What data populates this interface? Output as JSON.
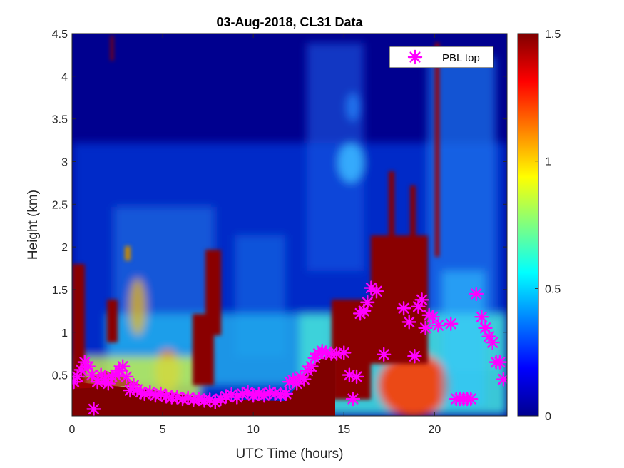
{
  "chart_data": {
    "type": "heatmap",
    "title": "03-Aug-2018, CL31 Data",
    "xlabel": "UTC Time (hours)",
    "ylabel": "Height (km)",
    "xlim": [
      0,
      24
    ],
    "ylim": [
      0.02,
      4.5
    ],
    "xticks": [
      "0",
      "5",
      "10",
      "15",
      "20"
    ],
    "yticks": [
      "0.5",
      "1",
      "1.5",
      "2",
      "2.5",
      "3",
      "3.5",
      "4",
      "4.5"
    ],
    "colorbar": {
      "colormap": "jet",
      "range": [
        0,
        1.5
      ],
      "ticks": [
        "0",
        "0.5",
        "1",
        "1.5"
      ]
    },
    "legend": {
      "position": "top-right",
      "entries": [
        "PBL top"
      ]
    },
    "series": [
      {
        "name": "PBL top",
        "marker": "asterisk",
        "color": "#ff00ff",
        "x": [
          0.1,
          0.3,
          0.5,
          0.7,
          0.9,
          1.1,
          1.2,
          1.4,
          1.6,
          1.8,
          2.0,
          2.2,
          2.4,
          2.6,
          2.8,
          3.0,
          3.2,
          3.4,
          3.6,
          3.8,
          4.0,
          4.3,
          4.6,
          4.9,
          5.2,
          5.5,
          5.8,
          6.1,
          6.4,
          6.7,
          7.0,
          7.3,
          7.6,
          7.9,
          8.2,
          8.5,
          8.8,
          9.1,
          9.4,
          9.7,
          10.0,
          10.3,
          10.6,
          10.9,
          11.2,
          11.5,
          11.8,
          12.0,
          12.2,
          12.4,
          12.6,
          12.8,
          13.0,
          13.2,
          13.4,
          13.6,
          13.8,
          14.0,
          14.3,
          14.6,
          15.0,
          15.3,
          15.5,
          15.7,
          15.9,
          16.1,
          16.3,
          16.5,
          16.8,
          17.2,
          18.3,
          18.6,
          18.9,
          19.1,
          19.3,
          19.5,
          19.7,
          19.9,
          20.2,
          20.9,
          21.2,
          21.4,
          21.6,
          21.8,
          22.0,
          22.3,
          22.6,
          22.8,
          23.0,
          23.2,
          23.4,
          23.6,
          23.8
        ],
        "y": [
          0.42,
          0.48,
          0.56,
          0.65,
          0.6,
          0.5,
          0.1,
          0.42,
          0.5,
          0.45,
          0.4,
          0.48,
          0.5,
          0.55,
          0.6,
          0.48,
          0.32,
          0.38,
          0.33,
          0.3,
          0.28,
          0.3,
          0.26,
          0.28,
          0.25,
          0.24,
          0.24,
          0.22,
          0.23,
          0.21,
          0.22,
          0.2,
          0.21,
          0.18,
          0.22,
          0.25,
          0.27,
          0.24,
          0.28,
          0.3,
          0.26,
          0.28,
          0.26,
          0.3,
          0.28,
          0.27,
          0.28,
          0.42,
          0.44,
          0.4,
          0.48,
          0.45,
          0.55,
          0.6,
          0.7,
          0.75,
          0.78,
          0.76,
          0.75,
          0.75,
          0.76,
          0.5,
          0.22,
          0.48,
          1.22,
          1.25,
          1.35,
          1.52,
          1.48,
          0.74,
          1.28,
          1.12,
          0.72,
          1.3,
          1.38,
          1.05,
          1.2,
          1.18,
          1.08,
          1.1,
          0.22,
          0.22,
          0.22,
          0.22,
          0.22,
          1.45,
          1.18,
          1.05,
          0.95,
          0.88,
          0.65,
          0.65,
          0.45
        ]
      }
    ]
  }
}
